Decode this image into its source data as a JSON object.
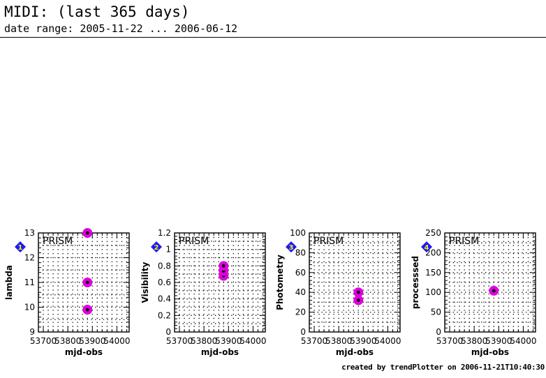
{
  "header": {
    "title": "MIDI: (last 365 days)",
    "subtitle": "date range: 2005-11-22 ... 2006-06-12"
  },
  "footer": "created by trendPlotter on 2006-11-21T10:40:30",
  "colors": {
    "marker": "#e000e0",
    "badge": "#1a1aff",
    "badge_text": "#ffee00"
  },
  "chart_data": [
    {
      "type": "scatter",
      "badge": "1",
      "label": "PRISM",
      "xlabel": "mjd-obs",
      "ylabel": "lambda",
      "xlim": [
        53680,
        54050
      ],
      "ylim": [
        9,
        13
      ],
      "xticks": [
        53700,
        53800,
        53900,
        54000
      ],
      "xtick_labels": [
        "53700",
        "53800",
        "53900",
        "54000"
      ],
      "yticks": [
        9,
        10,
        11,
        12,
        13
      ],
      "ytick_labels": [
        "9",
        "10",
        "11",
        "12",
        "13"
      ],
      "grid": true,
      "points": [
        {
          "x": 53880,
          "y": 9.9
        },
        {
          "x": 53880,
          "y": 11.0
        },
        {
          "x": 53880,
          "y": 13.0
        }
      ]
    },
    {
      "type": "scatter",
      "badge": "2",
      "label": "PRISM",
      "xlabel": "mjd-obs",
      "ylabel": "Visibility",
      "xlim": [
        53680,
        54050
      ],
      "ylim": [
        0,
        1.2
      ],
      "xticks": [
        53700,
        53800,
        53900,
        54000
      ],
      "xtick_labels": [
        "53700",
        "53800",
        "53900",
        "54000"
      ],
      "yticks": [
        0,
        0.2,
        0.4,
        0.6,
        0.8,
        1,
        1.2
      ],
      "ytick_labels": [
        "0",
        "0.2",
        "0.4",
        "0.6",
        "0.8",
        "1",
        "1.2"
      ],
      "grid": true,
      "points": [
        {
          "x": 53880,
          "y": 0.68
        },
        {
          "x": 53880,
          "y": 0.74
        },
        {
          "x": 53880,
          "y": 0.8
        }
      ]
    },
    {
      "type": "scatter",
      "badge": "3",
      "label": "PRISM",
      "xlabel": "mjd-obs",
      "ylabel": "Photometry",
      "xlim": [
        53680,
        54050
      ],
      "ylim": [
        0,
        100
      ],
      "xticks": [
        53700,
        53800,
        53900,
        54000
      ],
      "xtick_labels": [
        "53700",
        "53800",
        "53900",
        "54000"
      ],
      "yticks": [
        0,
        20,
        40,
        60,
        80,
        100
      ],
      "ytick_labels": [
        "0",
        "20",
        "40",
        "60",
        "80",
        "100"
      ],
      "grid": true,
      "points": [
        {
          "x": 53880,
          "y": 32
        },
        {
          "x": 53880,
          "y": 40
        }
      ]
    },
    {
      "type": "scatter",
      "badge": "4",
      "label": "PRISM",
      "xlabel": "mjd-obs",
      "ylabel": "processsed",
      "xlim": [
        53680,
        54050
      ],
      "ylim": [
        0,
        250
      ],
      "xticks": [
        53700,
        53800,
        53900,
        54000
      ],
      "xtick_labels": [
        "53700",
        "53800",
        "53900",
        "54000"
      ],
      "yticks": [
        0,
        50,
        100,
        150,
        200,
        250
      ],
      "ytick_labels": [
        "0",
        "50",
        "100",
        "150",
        "200",
        "250"
      ],
      "grid": true,
      "points": [
        {
          "x": 53880,
          "y": 104
        }
      ]
    }
  ]
}
